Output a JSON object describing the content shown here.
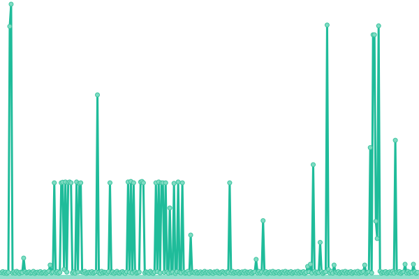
{
  "chart_data": {
    "type": "line",
    "title": "",
    "xlabel": "",
    "ylabel": "",
    "grid": false,
    "legend": "none",
    "ylim": [
      0,
      100
    ],
    "colors": {
      "line": "#1fbc9a",
      "marker_fill": "#7fdcc3",
      "marker_stroke": "#3cc39f",
      "base_band": "#8fe0cb"
    },
    "series": [
      {
        "values": [
          0.8,
          1.2,
          0.6,
          1.0,
          0.5,
          0.9,
          91.8,
          100,
          0.7,
          1.1,
          0.6,
          1.3,
          0.9,
          0.5,
          1.0,
          0.8,
          6.2,
          1.2,
          0.7,
          0.9,
          1.1,
          0.6,
          0.8,
          1.3,
          0.5,
          0.9,
          1.0,
          0.7,
          1.2,
          0.6,
          0.8,
          1.1,
          0.5,
          0.9,
          1.3,
          3.6,
          0.7,
          1.0,
          34,
          0.8,
          1.2,
          0.6,
          0.9,
          34,
          34.2,
          2,
          34.3,
          1,
          34.1,
          34.3,
          34,
          0.7,
          1.1,
          0.6,
          34.3,
          1,
          33.8,
          34,
          1,
          0.9,
          1.3,
          0.5,
          0.8,
          1.0,
          0.7,
          1.2,
          0.6,
          0.9,
          1.1,
          66.5,
          0.8,
          0.5,
          1.3,
          0.7,
          1.0,
          0.9,
          0.6,
          1.2,
          34,
          0.8,
          1.1,
          0.5,
          0.9,
          1.3,
          0.7,
          0.6,
          1.0,
          1.2,
          0.8,
          0.5,
          1.1,
          34.3,
          0.9,
          34.5,
          0.7,
          34,
          1.2,
          0.6,
          0.8,
          1.0,
          34.3,
          34.5,
          34,
          0.7,
          1.1,
          0.9,
          0.6,
          1.3,
          0.8,
          0.5,
          1.0,
          34,
          1.2,
          34.3,
          0.7,
          34,
          34,
          0.9,
          34,
          1.1,
          0.6,
          24.7,
          0.8,
          1.0,
          33.8,
          0.5,
          1.2,
          34.3,
          0.9,
          0.7,
          34,
          1.1,
          0.6,
          0.8,
          1.3,
          0.5,
          14.7,
          0.9,
          1.0,
          0.7,
          1.2,
          0.6,
          0.8,
          1.1,
          0.5,
          0.9,
          1.3,
          0.7,
          1.0,
          0.6,
          1.2,
          0.8,
          0.5,
          1.1,
          0.9,
          1.3,
          0.7,
          0.6,
          1.0,
          1.2,
          0.8,
          0.5,
          1.1,
          0.9,
          34,
          0.7,
          1.3,
          0.6,
          1.0,
          0.8,
          1.2,
          0.5,
          0.9,
          1.1,
          0.7,
          1.3,
          0.6,
          1.0,
          0.8,
          1.2,
          0.5,
          0.9,
          1.1,
          5.7,
          0.7,
          1.3,
          0.6,
          1.0,
          20,
          0.8,
          1.2,
          0.5,
          0.9,
          1.1,
          0.7,
          1.3,
          0.6,
          1.0,
          0.8,
          1.2,
          0.5,
          0.9,
          1.1,
          0.7,
          1.3,
          0.6,
          1.0,
          0.8,
          1.2,
          0.5,
          0.9,
          1.1,
          0.7,
          1.3,
          0.6,
          1.0,
          0.8,
          1.2,
          0.5,
          0.9,
          3.1,
          1.1,
          3.9,
          0.7,
          40.7,
          1.3,
          0.6,
          1.0,
          0.8,
          12,
          1.2,
          0.5,
          0.9,
          1.1,
          92.3,
          2,
          0.7,
          1.3,
          0.6,
          3.6,
          1.0,
          0.8,
          1.2,
          0.5,
          0.9,
          1.1,
          0.7,
          1.3,
          0.6,
          1.0,
          0.8,
          1.2,
          0.5,
          0.9,
          1.1,
          0.7,
          1.3,
          0.6,
          1.0,
          0.8,
          1.2,
          3.6,
          0.5,
          0.9,
          1.1,
          47,
          0.7,
          88.7,
          88.7,
          19.8,
          13.4,
          92,
          1.3,
          0.6,
          1.0,
          0.8,
          1.2,
          0.5,
          0.9,
          1.1,
          0.7,
          1.3,
          0.6,
          49.7,
          1.0,
          0.8,
          1.2,
          0.5,
          0.9,
          1.1,
          3.9,
          0.7,
          1.3,
          0.6,
          1.0,
          0.8,
          3.9,
          1.2,
          0.5,
          0.9
        ]
      }
    ]
  }
}
